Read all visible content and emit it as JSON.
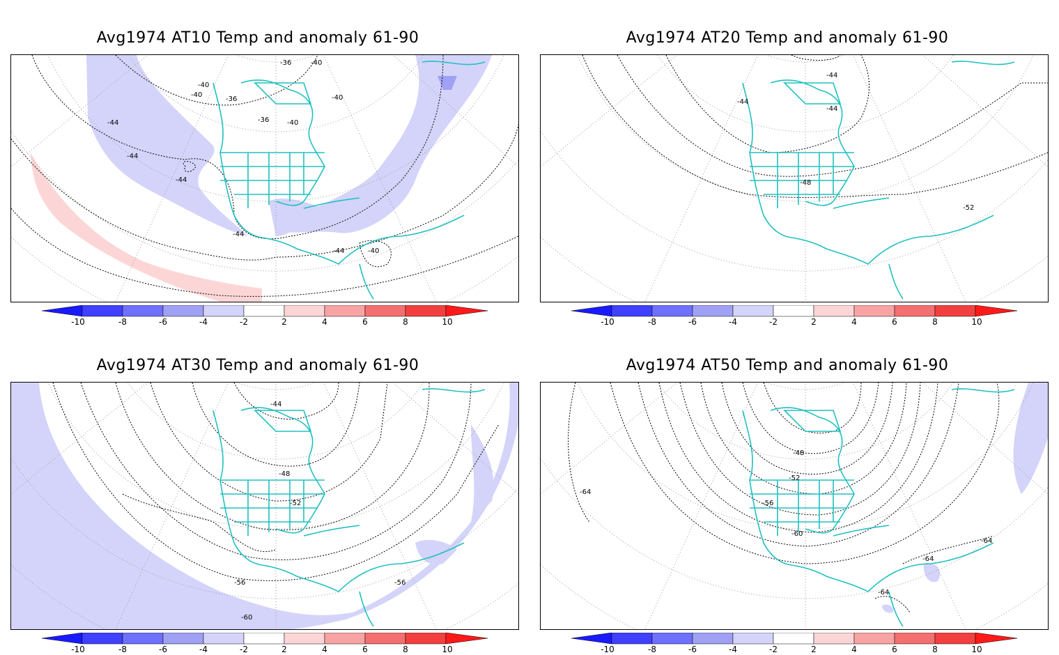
{
  "panels": [
    {
      "title": "Avg1974 AT10 Temp and anomaly 61-90",
      "contour_labels": [
        "-36",
        "-40",
        "-40",
        "-40",
        "-36",
        "-36",
        "-40",
        "-40",
        "-44",
        "-44",
        "-44",
        "-44",
        "-44",
        "-40"
      ]
    },
    {
      "title": "Avg1974 AT20 Temp and anomaly 61-90",
      "contour_labels": [
        "-44",
        "-44",
        "-44",
        "-48",
        "-52"
      ]
    },
    {
      "title": "Avg1974 AT30 Temp and anomaly 61-90",
      "contour_labels": [
        "-44",
        "-48",
        "-52",
        "-56",
        "-56",
        "-60"
      ]
    },
    {
      "title": "Avg1974 AT50 Temp and anomaly 61-90",
      "contour_labels": [
        "-64",
        "-48",
        "-52",
        "-56",
        "-60",
        "-64",
        "-64",
        "-64"
      ]
    }
  ],
  "colorbar": {
    "tick_labels": [
      "-10",
      "-8",
      "-6",
      "-4",
      "-2",
      "2",
      "4",
      "6",
      "8",
      "10"
    ],
    "colors": [
      "#1a1aff",
      "#4040ff",
      "#7070ff",
      "#a0a0f5",
      "#d4d4fa",
      "#ffffff",
      "#fcd6d6",
      "#f8a4a4",
      "#f47070",
      "#f24040",
      "#ff1a1a"
    ]
  },
  "colors": {
    "coast": "#20c0c0",
    "contour": "#000000",
    "grid": "#999999",
    "negative_anomaly": "#d4d4fa",
    "positive_anomaly": "#fcd6d6"
  }
}
